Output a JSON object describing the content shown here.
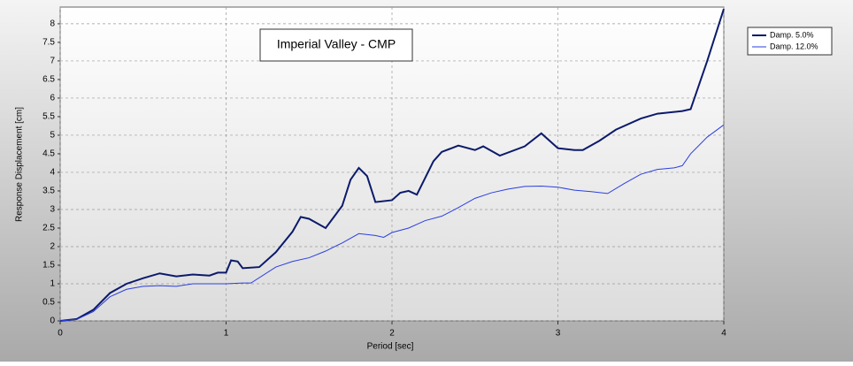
{
  "chart_data": {
    "type": "line",
    "title": "Imperial Valley - CMP",
    "x_label": "Period [sec]",
    "y_label": "Response Displacement [cm]",
    "xlim": [
      0,
      4
    ],
    "xticks": [
      0,
      1,
      2,
      3,
      4
    ],
    "ylim": [
      0,
      8.45
    ],
    "yticks": [
      0,
      0.5,
      1,
      1.5,
      2,
      2.5,
      3,
      3.5,
      4,
      4.5,
      5,
      5.5,
      6,
      6.5,
      7,
      7.5,
      8
    ],
    "grid": true,
    "legend": "right",
    "series": [
      {
        "name": "Damp. 5.0%",
        "color": "#0b1a6b",
        "width": 2,
        "x": [
          0,
          0.1,
          0.2,
          0.3,
          0.4,
          0.5,
          0.6,
          0.7,
          0.8,
          0.9,
          0.95,
          1.0,
          1.03,
          1.07,
          1.1,
          1.2,
          1.3,
          1.4,
          1.45,
          1.5,
          1.6,
          1.7,
          1.75,
          1.8,
          1.85,
          1.9,
          2.0,
          2.05,
          2.1,
          2.15,
          2.25,
          2.3,
          2.4,
          2.5,
          2.55,
          2.65,
          2.8,
          2.9,
          3.0,
          3.1,
          3.15,
          3.25,
          3.35,
          3.5,
          3.6,
          3.75,
          3.8,
          3.9,
          4.0
        ],
        "values": [
          0,
          0.05,
          0.3,
          0.75,
          1.0,
          1.15,
          1.28,
          1.2,
          1.25,
          1.22,
          1.3,
          1.3,
          1.63,
          1.6,
          1.42,
          1.45,
          1.85,
          2.4,
          2.8,
          2.75,
          2.5,
          3.1,
          3.8,
          4.12,
          3.9,
          3.2,
          3.25,
          3.45,
          3.5,
          3.4,
          4.3,
          4.55,
          4.72,
          4.6,
          4.7,
          4.45,
          4.7,
          5.05,
          4.65,
          4.6,
          4.6,
          4.85,
          5.15,
          5.45,
          5.58,
          5.65,
          5.7,
          7.0,
          8.4
        ]
      },
      {
        "name": "Damp. 12.0%",
        "color": "#2b3fe0",
        "width": 1,
        "x": [
          0,
          0.1,
          0.2,
          0.3,
          0.4,
          0.5,
          0.6,
          0.7,
          0.8,
          0.9,
          1.0,
          1.1,
          1.15,
          1.3,
          1.4,
          1.5,
          1.6,
          1.7,
          1.8,
          1.9,
          1.95,
          2.0,
          2.1,
          2.2,
          2.3,
          2.4,
          2.5,
          2.6,
          2.7,
          2.8,
          2.9,
          3.0,
          3.1,
          3.2,
          3.3,
          3.4,
          3.5,
          3.6,
          3.7,
          3.75,
          3.8,
          3.9,
          4.0
        ],
        "values": [
          0,
          0.04,
          0.25,
          0.65,
          0.85,
          0.93,
          0.95,
          0.93,
          1.0,
          1.0,
          1.0,
          1.02,
          1.02,
          1.45,
          1.6,
          1.7,
          1.88,
          2.1,
          2.35,
          2.3,
          2.25,
          2.38,
          2.5,
          2.7,
          2.82,
          3.05,
          3.3,
          3.45,
          3.55,
          3.62,
          3.63,
          3.6,
          3.52,
          3.48,
          3.43,
          3.7,
          3.95,
          4.08,
          4.12,
          4.18,
          4.5,
          4.95,
          5.28
        ]
      }
    ]
  }
}
